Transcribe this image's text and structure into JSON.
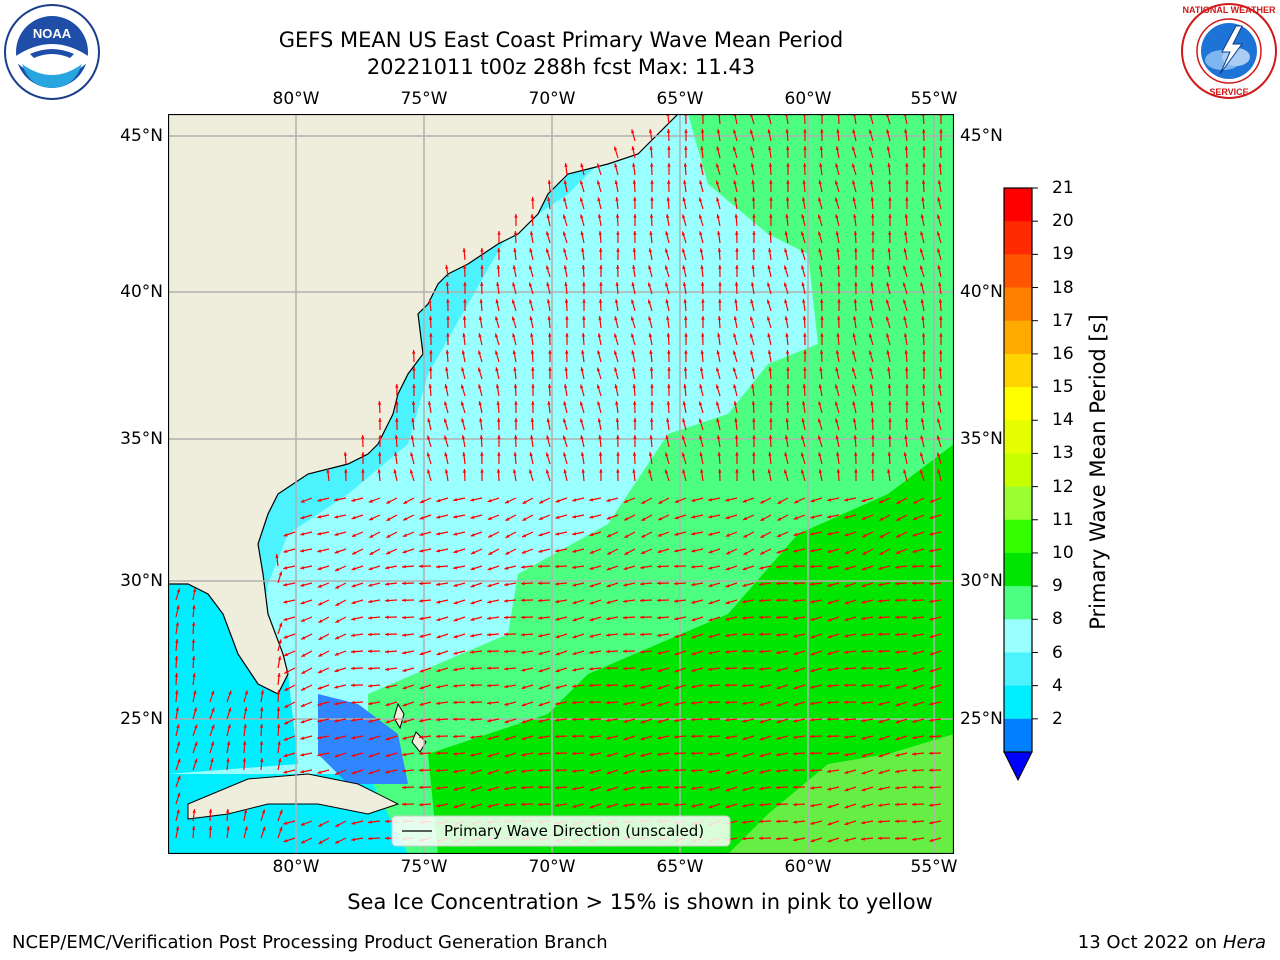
{
  "header": {
    "title_line1": "GEFS MEAN US East Coast Primary Wave Mean Period",
    "title_line2": "20221011 t00z 288h fcst   Max: 11.43"
  },
  "logos": {
    "left": {
      "icon": "noaa-logo",
      "text": "NOAA"
    },
    "right": {
      "icon": "national-weather-service-logo",
      "text": "NATIONAL WEATHER SERVICE"
    }
  },
  "map": {
    "lon_ticks": [
      "80°W",
      "75°W",
      "70°W",
      "65°W",
      "60°W",
      "55°W"
    ],
    "lat_ticks": [
      "45°N",
      "40°N",
      "35°N",
      "30°N",
      "25°N"
    ],
    "legend_label": "Primary Wave Direction (unscaled)",
    "colors": {
      "land": "#efeedd",
      "arrows": "#ff0000",
      "grid": "#b0b0b0"
    }
  },
  "colorbar": {
    "label": "Primary Wave Mean Period [s]",
    "ticks": [
      "21",
      "20",
      "19",
      "18",
      "17",
      "16",
      "15",
      "14",
      "13",
      "12",
      "11",
      "10",
      "9",
      "8",
      "6",
      "4",
      "2"
    ],
    "colors": [
      "#ff0000",
      "#ff2a00",
      "#ff5500",
      "#ff8000",
      "#ffaa00",
      "#ffd400",
      "#ffff00",
      "#e6ff00",
      "#c8ff00",
      "#99ff33",
      "#33ff00",
      "#00e600",
      "#4dff80",
      "#99ffff",
      "#4df2ff",
      "#00eeff",
      "#0080ff"
    ],
    "under_color": "#0000ff"
  },
  "footer": {
    "sea_ice_note": "Sea Ice Concentration > 15% is shown in pink to yellow",
    "credit": "NCEP/EMC/Verification Post Processing Product Generation Branch",
    "date": "13 Oct 2022 on ",
    "machine": "Hera"
  }
}
